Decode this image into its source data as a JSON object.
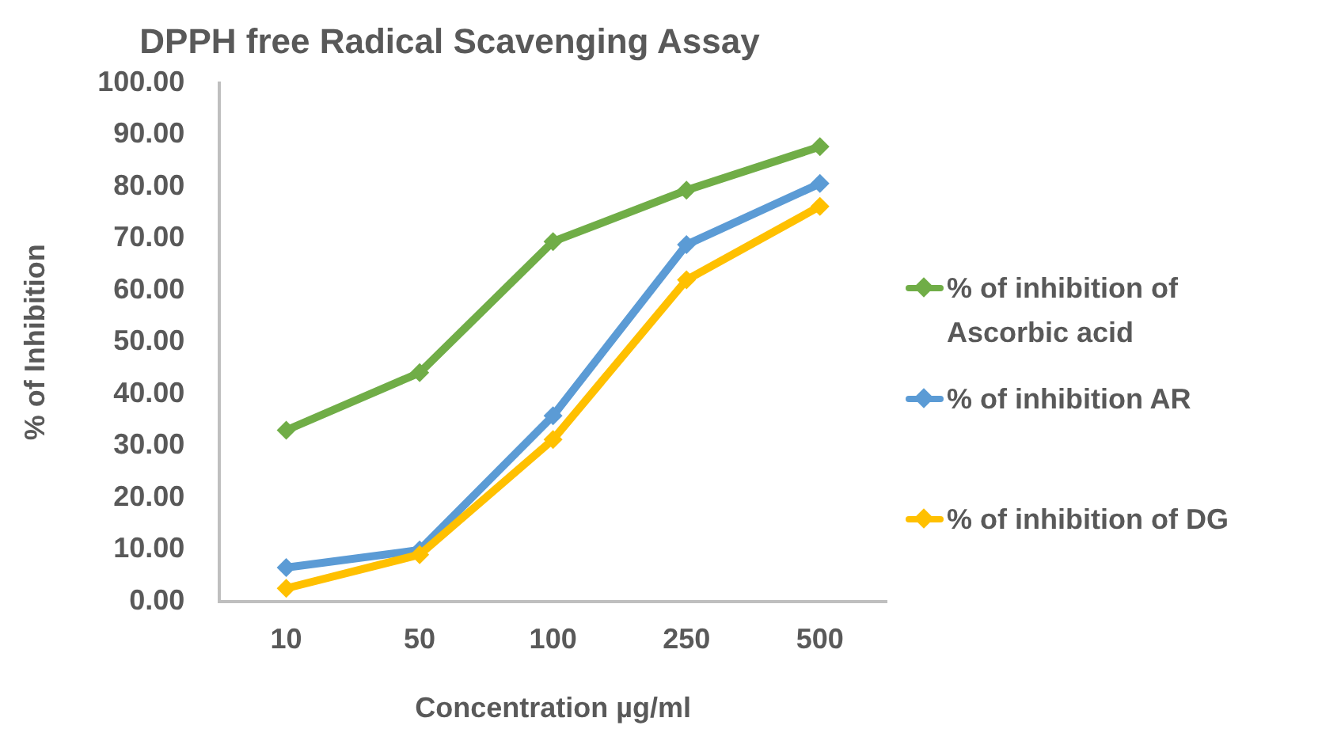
{
  "chart_data": {
    "type": "line",
    "title": "DPPH free Radical Scavenging Assay",
    "xlabel": "Concentration µg/ml",
    "ylabel": "% of Inhibition",
    "categories": [
      "10",
      "50",
      "100",
      "250",
      "500"
    ],
    "series": [
      {
        "name": "% of inhibition of Ascorbic acid",
        "color": "#70ad47",
        "values": [
          33.0,
          44.1,
          69.4,
          79.3,
          87.7
        ]
      },
      {
        "name": "% of inhibition AR",
        "color": "#5b9bd5",
        "values": [
          6.5,
          9.9,
          35.8,
          68.8,
          80.6
        ]
      },
      {
        "name": "% of inhibition of DG",
        "color": "#ffc000",
        "values": [
          2.5,
          9.0,
          31.2,
          62.0,
          76.2
        ]
      }
    ],
    "ylim": [
      0,
      100
    ],
    "yticks": [
      {
        "value": 0,
        "label": "0.00"
      },
      {
        "value": 10,
        "label": "10.00"
      },
      {
        "value": 20,
        "label": "20.00"
      },
      {
        "value": 30,
        "label": "30.00"
      },
      {
        "value": 40,
        "label": "40.00"
      },
      {
        "value": 50,
        "label": "50.00"
      },
      {
        "value": 60,
        "label": "60.00"
      },
      {
        "value": 70,
        "label": "70.00"
      },
      {
        "value": 80,
        "label": "80.00"
      },
      {
        "value": 90,
        "label": "90.00"
      },
      {
        "value": 100,
        "label": "100.00"
      }
    ],
    "grid": false,
    "legend": "right",
    "marker": "diamond",
    "line_style": "solid"
  }
}
